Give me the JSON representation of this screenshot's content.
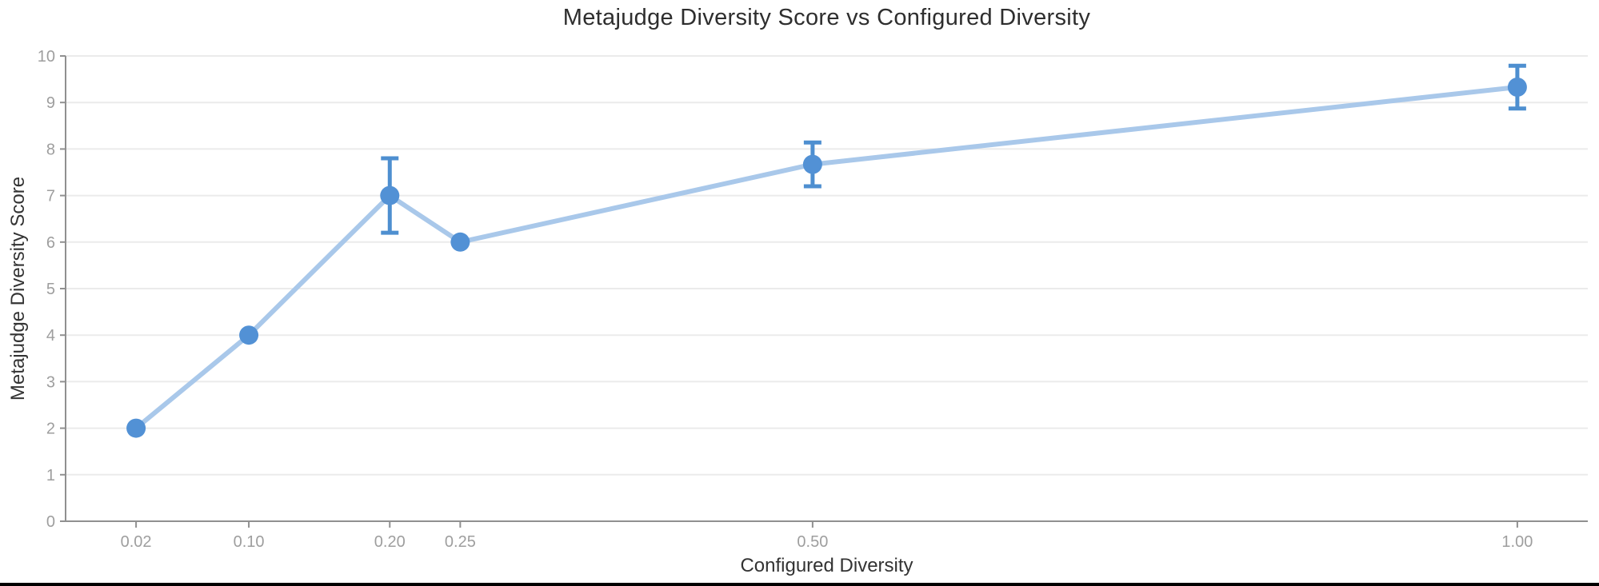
{
  "chart_data": {
    "type": "line",
    "title": "Metajudge Diversity Score vs Configured Diversity",
    "xlabel": "Configured Diversity",
    "ylabel": "Metajudge Diversity Score",
    "x": [
      0.02,
      0.1,
      0.2,
      0.25,
      0.5,
      1.0
    ],
    "y": [
      2.0,
      4.0,
      7.0,
      6.0,
      7.67,
      9.33
    ],
    "y_err": [
      0,
      0,
      0.8,
      0,
      0.47,
      0.46
    ],
    "x_tick_labels": [
      "0.02",
      "0.10",
      "0.20",
      "0.25",
      "0.50",
      "1.00"
    ],
    "y_ticks": [
      0,
      1,
      2,
      3,
      4,
      5,
      6,
      7,
      8,
      9,
      10
    ],
    "y_tick_labels": [
      "0",
      "1",
      "2",
      "3",
      "4",
      "5",
      "6",
      "7",
      "8",
      "9",
      "10"
    ],
    "xlim": [
      -0.03,
      1.05
    ],
    "ylim": [
      0,
      10
    ],
    "grid": "horizontal-only",
    "legend": "none",
    "marker_style": "filled-circle",
    "error_bar_points": [
      "0.20",
      "0.50",
      "1.00"
    ],
    "colors": {
      "marker": "#5291d5",
      "line": "#a9c8ea",
      "error_bar": "#4e8fd0",
      "grid": "#ebebeb",
      "axis": "#909090",
      "tick_label": "#9e9e9e",
      "text": "#333333",
      "title": "#2e2e2e",
      "background": "#ffffff",
      "bottom_edge": "#000000"
    }
  }
}
